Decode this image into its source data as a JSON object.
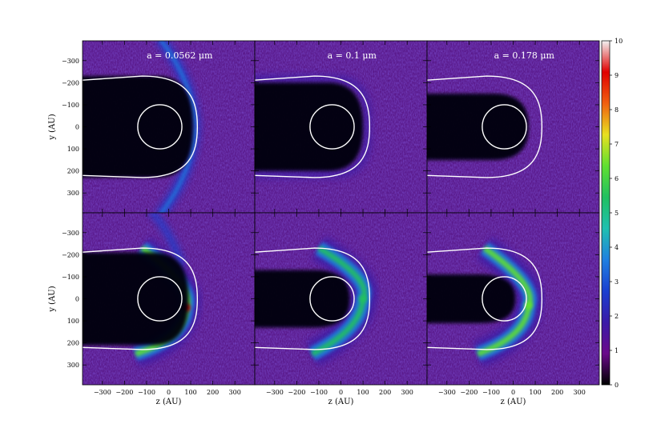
{
  "chart_data": {
    "type": "heatmap",
    "layout": "2 rows x 3 columns of panels sharing axes",
    "column_titles": [
      "a = 0.0562 μm",
      "a = 0.1 μm",
      "a = 0.178 μm"
    ],
    "xlabel": "z (AU)",
    "ylabel": "y (AU)",
    "xlim": [
      -390,
      390
    ],
    "ylim": [
      -390,
      390
    ],
    "y_axis_inverted": true,
    "x_ticks": [
      -300,
      -200,
      -100,
      0,
      100,
      200,
      300
    ],
    "y_ticks": [
      -300,
      -200,
      -100,
      0,
      100,
      200,
      300
    ],
    "x_tick_labels": [
      "−300",
      "−200",
      "−100",
      "0",
      "100",
      "200",
      "300"
    ],
    "y_tick_labels": [
      "−300",
      "−200",
      "−100",
      "0",
      "100",
      "200",
      "300"
    ],
    "colorbar": {
      "range": [
        0,
        10
      ],
      "ticks": [
        0,
        1,
        2,
        3,
        4,
        5,
        6,
        7,
        8,
        9,
        10
      ],
      "colors": [
        "#000000",
        "#6a0a8a",
        "#3a1aa8",
        "#1a40d0",
        "#1f80e0",
        "#20c0b0",
        "#20c060",
        "#60e030",
        "#e8e020",
        "#f06010",
        "#e00000",
        "#f2f2f2"
      ]
    },
    "overlays": {
      "inner_circle_radius_au": 100,
      "inner_circle_center_au": [
        -40,
        0
      ],
      "outer_boundary_nose_z_au": 130,
      "outer_boundary_halfwidth_au": 230,
      "outer_boundary_color": "#ffffff"
    },
    "panels": [
      {
        "row": 1,
        "col": 1,
        "shadow_apex_z": 110,
        "shadow_halfwidth": 230,
        "arc_type": "wings",
        "arc_peak": 3,
        "peak_z": null,
        "peak_y": null
      },
      {
        "row": 1,
        "col": 2,
        "shadow_apex_z": 100,
        "shadow_halfwidth": 200,
        "arc_type": "rim",
        "arc_peak": 2,
        "peak_z": null,
        "peak_y": null
      },
      {
        "row": 1,
        "col": 3,
        "shadow_apex_z": 70,
        "shadow_halfwidth": 150,
        "arc_type": "none",
        "arc_peak": 0.5,
        "peak_z": null,
        "peak_y": null
      },
      {
        "row": 2,
        "col": 1,
        "shadow_apex_z": 90,
        "shadow_halfwidth": 210,
        "arc_type": "crescent",
        "arc_peak": 9,
        "peak_z": 80,
        "peak_y": 40
      },
      {
        "row": 2,
        "col": 2,
        "shadow_apex_z": 40,
        "shadow_halfwidth": 130,
        "arc_type": "crescent",
        "arc_peak": 5,
        "peak_z": 100,
        "peak_y": 0
      },
      {
        "row": 2,
        "col": 3,
        "shadow_apex_z": 10,
        "shadow_halfwidth": 110,
        "arc_type": "crescent",
        "arc_peak": 6,
        "peak_z": 70,
        "peak_y": 30
      }
    ]
  }
}
